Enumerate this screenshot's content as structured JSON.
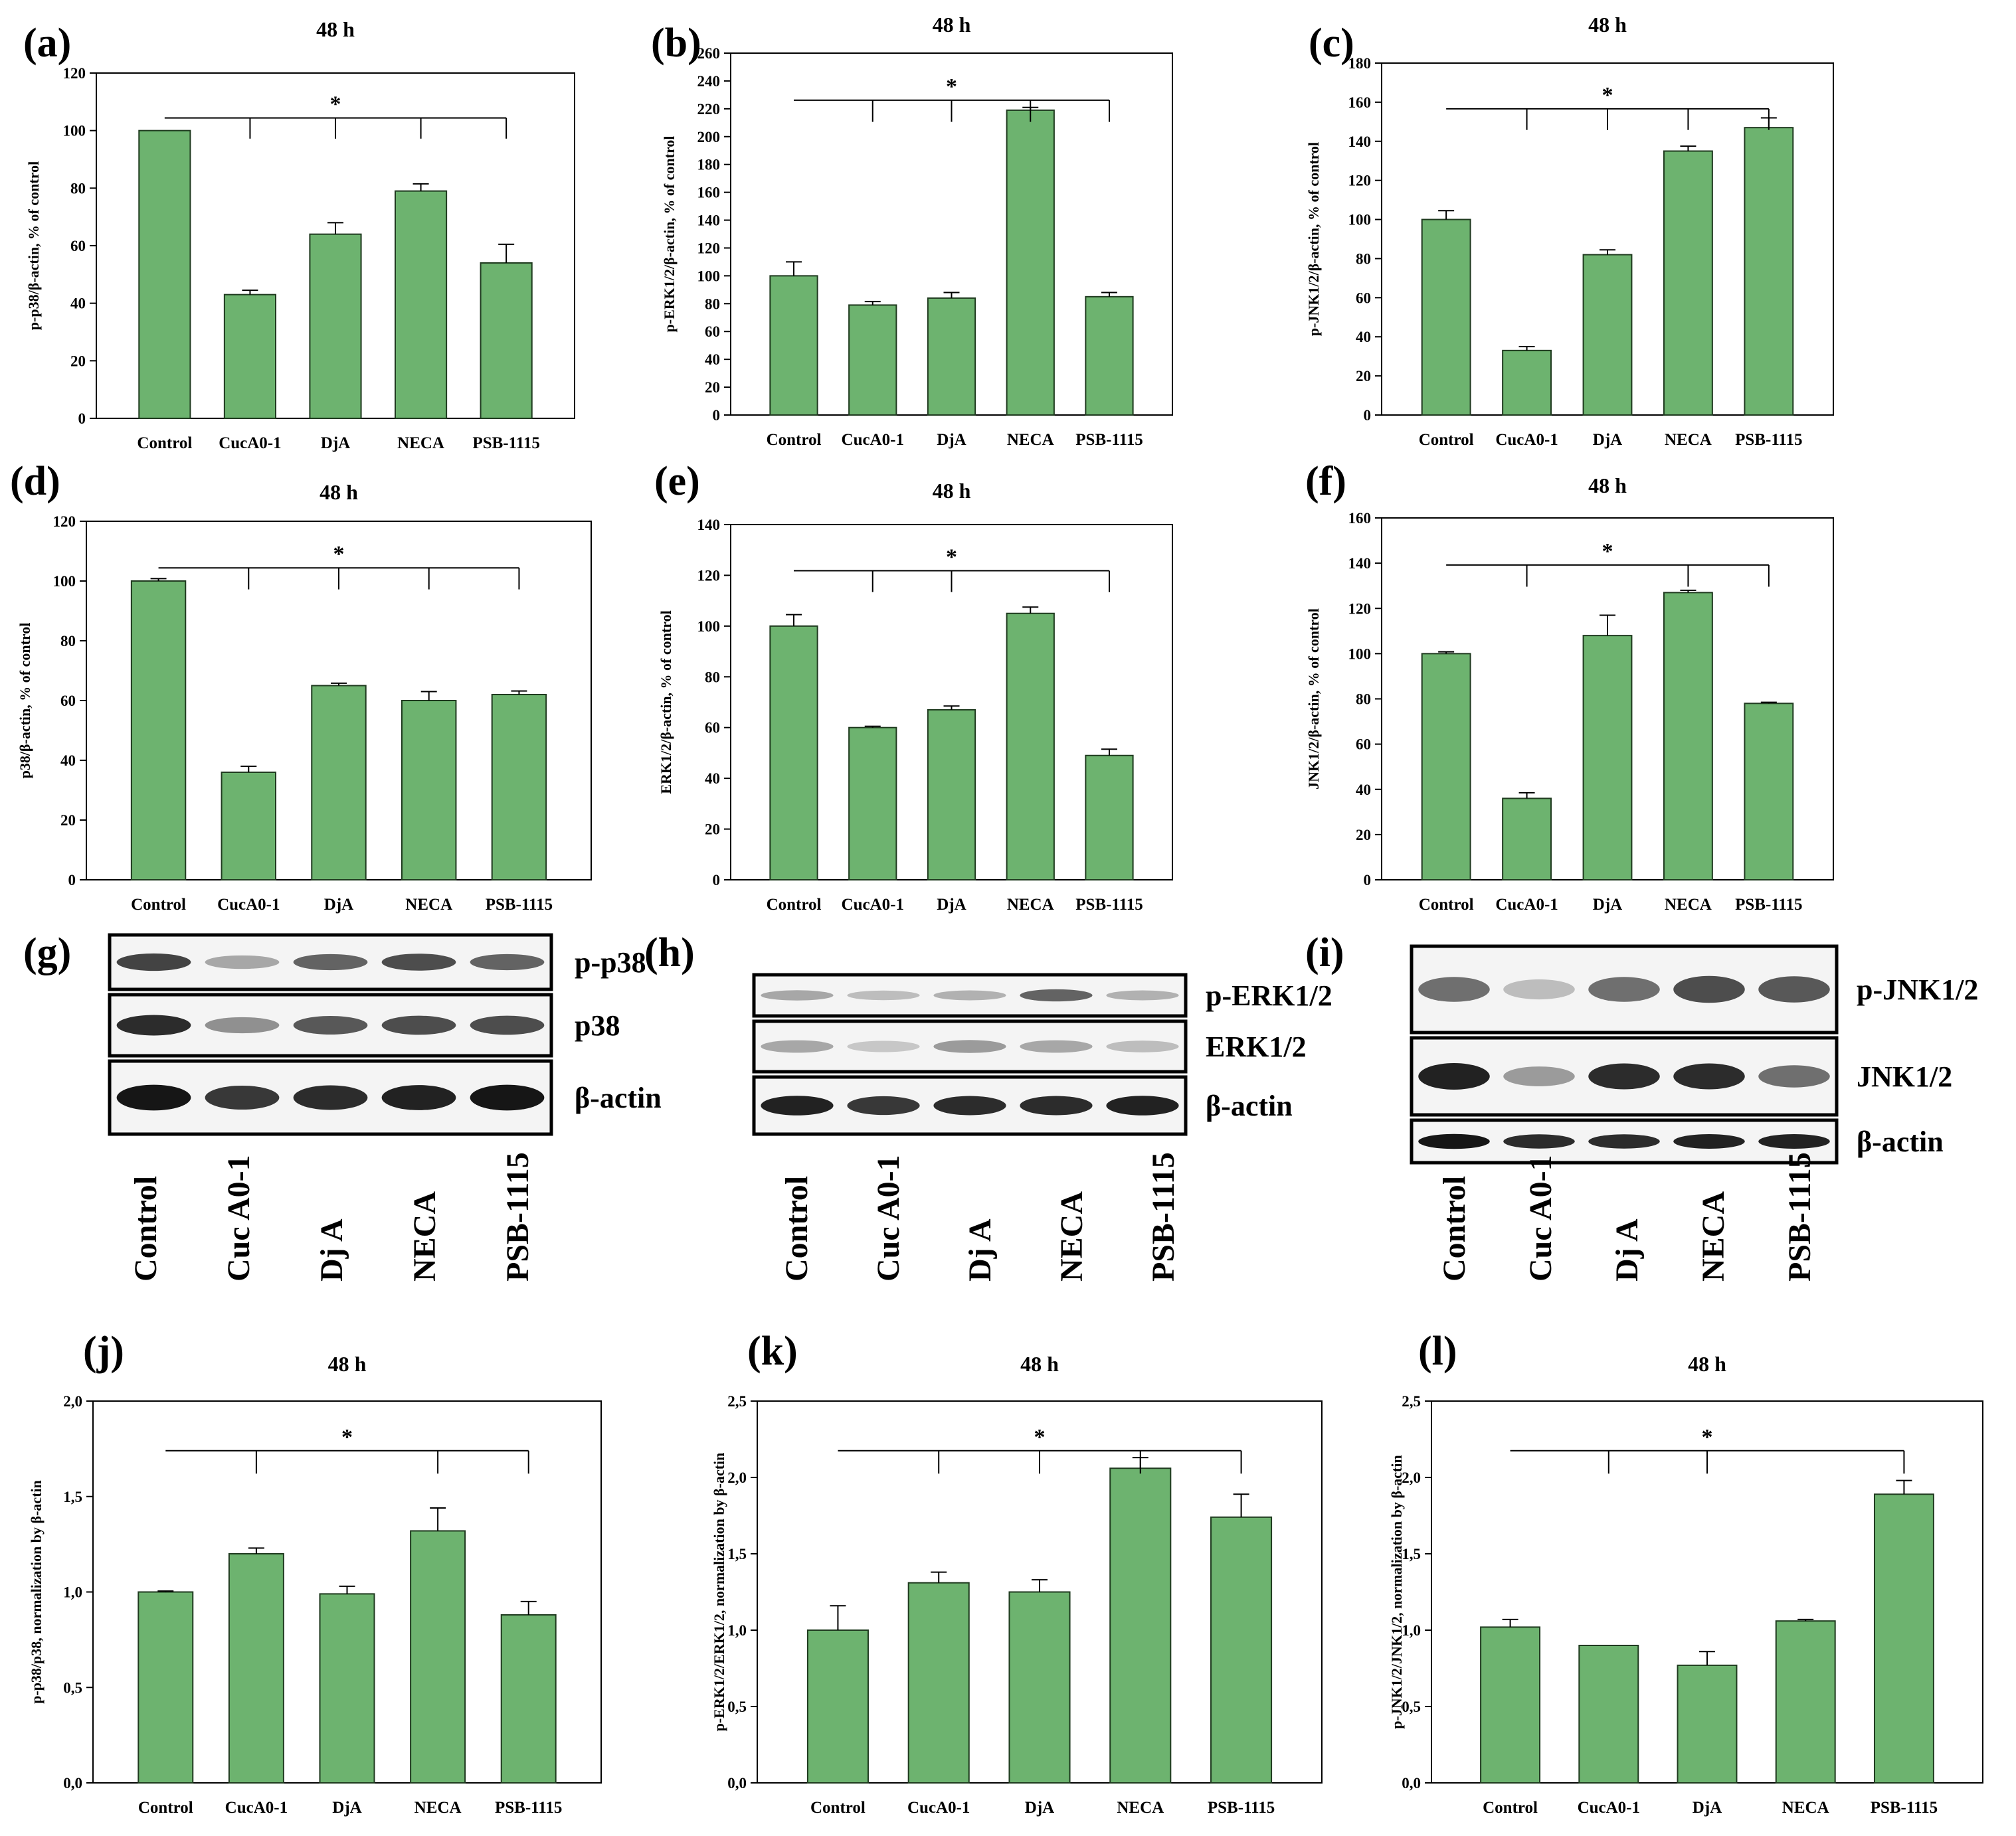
{
  "chart_data": [
    {
      "id": "a",
      "letter": "(a)",
      "type": "bar",
      "title": "48 h",
      "ylabel": "p-p38/β-actin, % of control",
      "categories": [
        "Control",
        "CucA0-1",
        "DjA",
        "NECA",
        "PSB-1115"
      ],
      "values": [
        100,
        43,
        64,
        79,
        54
      ],
      "errors": [
        0,
        1.5,
        4,
        2.5,
        6.5
      ],
      "ylim": [
        0,
        120
      ],
      "yticks": [
        "0",
        "20",
        "40",
        "60",
        "80",
        "100",
        "120"
      ],
      "significance": {
        "label": "*",
        "from": 0,
        "to": [
          1,
          2,
          3,
          4
        ]
      }
    },
    {
      "id": "b",
      "letter": "(b)",
      "type": "bar",
      "title": "48 h",
      "ylabel": "p-ERK1/2/β-actin, % of control",
      "categories": [
        "Control",
        "CucA0-1",
        "DjA",
        "NECA",
        "PSB-1115"
      ],
      "values": [
        100,
        79,
        84,
        219,
        85
      ],
      "errors": [
        10,
        2.5,
        4,
        2,
        3
      ],
      "ylim": [
        0,
        260
      ],
      "yticks": [
        "0",
        "20",
        "40",
        "60",
        "80",
        "100",
        "120",
        "140",
        "160",
        "180",
        "200",
        "220",
        "240",
        "260"
      ],
      "significance": {
        "label": "*",
        "from": 0,
        "to": [
          1,
          2,
          3,
          4
        ]
      }
    },
    {
      "id": "c",
      "letter": "(c)",
      "type": "bar",
      "title": "48 h",
      "ylabel": "p-JNK1/2/β-actin, % of control",
      "categories": [
        "Control",
        "CucA0-1",
        "DjA",
        "NECA",
        "PSB-1115"
      ],
      "values": [
        100,
        33,
        82,
        135,
        147
      ],
      "errors": [
        4.5,
        2,
        2.5,
        2.5,
        5
      ],
      "ylim": [
        0,
        180
      ],
      "yticks": [
        "0",
        "20",
        "40",
        "60",
        "80",
        "100",
        "120",
        "140",
        "160",
        "180"
      ],
      "significance": {
        "label": "*",
        "from": 0,
        "to": [
          1,
          2,
          3,
          4
        ]
      }
    },
    {
      "id": "d",
      "letter": "(d)",
      "type": "bar",
      "title": "48 h",
      "ylabel": "p38/β-actin, % of control",
      "categories": [
        "Control",
        "CucA0-1",
        "DjA",
        "NECA",
        "PSB-1115"
      ],
      "values": [
        100,
        36,
        65,
        60,
        62
      ],
      "errors": [
        0.8,
        2,
        0.8,
        3,
        1.2
      ],
      "ylim": [
        0,
        120
      ],
      "yticks": [
        "0",
        "20",
        "40",
        "60",
        "80",
        "100",
        "120"
      ],
      "significance": {
        "label": "*",
        "from": 0,
        "to": [
          1,
          2,
          3,
          4
        ]
      }
    },
    {
      "id": "e",
      "letter": "(e)",
      "type": "bar",
      "title": "48 h",
      "ylabel": "ERK1/2/β-actin, % of control",
      "categories": [
        "Control",
        "CucA0-1",
        "DjA",
        "NECA",
        "PSB-1115"
      ],
      "values": [
        100,
        60,
        67,
        105,
        49
      ],
      "errors": [
        4.5,
        0.5,
        1.5,
        2.5,
        2.5
      ],
      "ylim": [
        0,
        140
      ],
      "yticks": [
        "0",
        "20",
        "40",
        "60",
        "80",
        "100",
        "120",
        "140"
      ],
      "significance": {
        "label": "*",
        "from": 0,
        "to": [
          1,
          2,
          4
        ]
      }
    },
    {
      "id": "f",
      "letter": "(f)",
      "type": "bar",
      "title": "48 h",
      "ylabel": "JNK1/2/β-actin, % of control",
      "categories": [
        "Control",
        "CucA0-1",
        "DjA",
        "NECA",
        "PSB-1115"
      ],
      "values": [
        100,
        36,
        108,
        127,
        78
      ],
      "errors": [
        0.8,
        2.5,
        9,
        1,
        0.5
      ],
      "ylim": [
        0,
        160
      ],
      "yticks": [
        "0",
        "20",
        "40",
        "60",
        "80",
        "100",
        "120",
        "140",
        "160"
      ],
      "significance": {
        "label": "*",
        "from": 0,
        "to": [
          1,
          3,
          4
        ]
      }
    },
    {
      "id": "j",
      "letter": "(j)",
      "type": "bar",
      "title": "48 h",
      "ylabel": "p-p38/p38, normalization by β-actin",
      "categories": [
        "Control",
        "CucA0-1",
        "DjA",
        "NECA",
        "PSB-1115"
      ],
      "values": [
        1.0,
        1.2,
        0.99,
        1.32,
        0.88
      ],
      "errors": [
        0.005,
        0.03,
        0.04,
        0.12,
        0.07
      ],
      "ylim": [
        0,
        2.0
      ],
      "yticks": [
        "0,0",
        "0,5",
        "1,0",
        "1,5",
        "2,0"
      ],
      "significance": {
        "label": "*",
        "from": 0,
        "to": [
          1,
          3,
          4
        ]
      }
    },
    {
      "id": "k",
      "letter": "(k)",
      "type": "bar",
      "title": "48 h",
      "ylabel": "p-ERK1/2/ERK1/2, normalization by β-actin",
      "categories": [
        "Control",
        "CucA0-1",
        "DjA",
        "NECA",
        "PSB-1115"
      ],
      "values": [
        1.0,
        1.31,
        1.25,
        2.06,
        1.74
      ],
      "errors": [
        0.16,
        0.07,
        0.08,
        0.07,
        0.15
      ],
      "ylim": [
        0,
        2.5
      ],
      "yticks": [
        "0,0",
        "0,5",
        "1,0",
        "1,5",
        "2,0",
        "2,5"
      ],
      "significance": {
        "label": "*",
        "from": 0,
        "to": [
          1,
          2,
          3,
          4
        ]
      }
    },
    {
      "id": "l",
      "letter": "(l)",
      "type": "bar",
      "title": "48 h",
      "ylabel": "p-JNK1/2/JNK1/2, normalization by β-actin",
      "categories": [
        "Control",
        "CucA0-1",
        "DjA",
        "NECA",
        "PSB-1115"
      ],
      "values": [
        1.02,
        0.9,
        0.77,
        1.06,
        1.89
      ],
      "errors": [
        0.05,
        0,
        0.09,
        0.01,
        0.09
      ],
      "ylim": [
        0,
        2.5
      ],
      "yticks": [
        "0,0",
        "0,5",
        "1,0",
        "1,5",
        "2,0",
        "2,5"
      ],
      "significance": {
        "label": "*",
        "from": 0,
        "to": [
          1,
          2,
          4
        ]
      }
    }
  ],
  "blots": [
    {
      "id": "g",
      "letter": "(g)",
      "rows": [
        "p-p38",
        "p38",
        "β-actin"
      ],
      "lanes": [
        "Control",
        "Cuc A0-1",
        "Dj A",
        "NECA",
        "PSB-1115"
      ],
      "intensity": [
        [
          0.8,
          0.35,
          0.65,
          0.75,
          0.65
        ],
        [
          0.9,
          0.45,
          0.7,
          0.75,
          0.75
        ],
        [
          1,
          0.85,
          0.9,
          0.95,
          1
        ]
      ]
    },
    {
      "id": "h",
      "letter": "(h)",
      "rows": [
        "p-ERK1/2",
        "ERK1/2",
        "β-actin"
      ],
      "lanes": [
        "Control",
        "Cuc A0-1",
        "Dj A",
        "NECA",
        "PSB-1115"
      ],
      "intensity": [
        [
          0.35,
          0.25,
          0.3,
          0.65,
          0.3
        ],
        [
          0.35,
          0.2,
          0.4,
          0.35,
          0.25
        ],
        [
          0.95,
          0.85,
          0.9,
          0.9,
          0.95
        ]
      ]
    },
    {
      "id": "i",
      "letter": "(i)",
      "rows": [
        "p-JNK1/2",
        "JNK1/2",
        "β-actin"
      ],
      "lanes": [
        "Control",
        "Cuc A0-1",
        "Dj A",
        "NECA",
        "PSB-1115"
      ],
      "intensity": [
        [
          0.6,
          0.25,
          0.6,
          0.75,
          0.7
        ],
        [
          0.95,
          0.4,
          0.9,
          0.9,
          0.6
        ],
        [
          1,
          0.9,
          0.9,
          0.95,
          0.95
        ]
      ]
    }
  ],
  "colors": {
    "bar": "#6db36f",
    "bar_edge": "#1f3a1f"
  }
}
